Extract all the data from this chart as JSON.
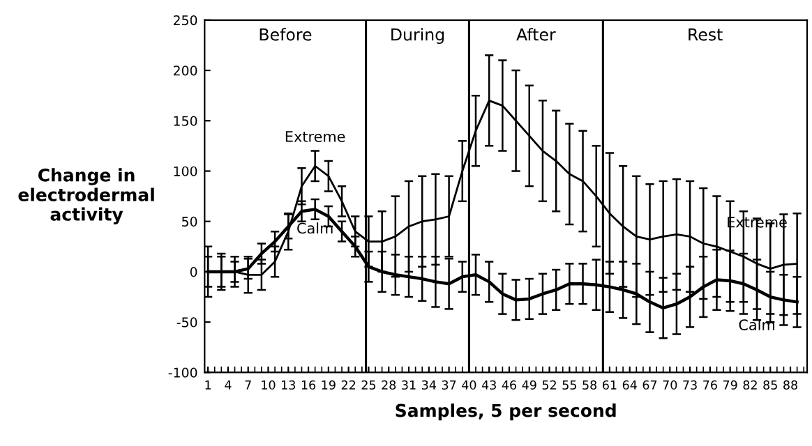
{
  "chart_data": {
    "type": "line",
    "xlabel": "Samples, 5 per second",
    "ylabel": "Change in\nelectrodermal\nactivity",
    "x": [
      1,
      3,
      5,
      7,
      9,
      11,
      13,
      15,
      17,
      19,
      21,
      23,
      25,
      27,
      29,
      31,
      33,
      35,
      37,
      39,
      41,
      43,
      45,
      47,
      49,
      51,
      53,
      55,
      57,
      59,
      61,
      63,
      65,
      67,
      69,
      71,
      73,
      75,
      77,
      79,
      81,
      83,
      85,
      87,
      89
    ],
    "series": [
      {
        "name": "Extreme",
        "color": "#000000",
        "values": [
          0,
          0,
          0,
          -3,
          -3,
          10,
          40,
          85,
          105,
          95,
          70,
          40,
          30,
          30,
          35,
          45,
          50,
          52,
          55,
          100,
          140,
          170,
          165,
          150,
          135,
          120,
          110,
          97,
          90,
          75,
          58,
          45,
          35,
          32,
          35,
          37,
          35,
          28,
          25,
          20,
          15,
          8,
          3,
          7,
          8
        ],
        "errors": [
          25,
          18,
          15,
          18,
          15,
          15,
          18,
          18,
          15,
          15,
          15,
          15,
          25,
          30,
          40,
          45,
          45,
          45,
          40,
          30,
          35,
          45,
          45,
          50,
          50,
          50,
          50,
          50,
          50,
          50,
          60,
          60,
          60,
          55,
          55,
          55,
          55,
          55,
          50,
          50,
          45,
          45,
          45,
          50,
          50
        ]
      },
      {
        "name": "Calm",
        "color": "#000000",
        "values": [
          0,
          0,
          0,
          3,
          18,
          30,
          45,
          60,
          62,
          55,
          40,
          25,
          5,
          0,
          -3,
          -5,
          -7,
          -10,
          -12,
          -5,
          -3,
          -10,
          -22,
          -28,
          -27,
          -22,
          -18,
          -12,
          -12,
          -13,
          -15,
          -18,
          -22,
          -30,
          -36,
          -32,
          -25,
          -15,
          -8,
          -9,
          -12,
          -18,
          -25,
          -28,
          -30
        ],
        "errors": [
          15,
          15,
          10,
          10,
          10,
          10,
          12,
          10,
          10,
          10,
          10,
          10,
          15,
          20,
          20,
          20,
          22,
          25,
          25,
          15,
          20,
          20,
          20,
          20,
          20,
          20,
          20,
          20,
          20,
          25,
          25,
          28,
          30,
          30,
          30,
          30,
          30,
          30,
          30,
          30,
          30,
          30,
          25,
          25,
          25
        ]
      }
    ],
    "marker": "none",
    "xlim": [
      0.5,
      90.5
    ],
    "xticks": [
      1,
      4,
      7,
      10,
      13,
      16,
      19,
      22,
      25,
      28,
      31,
      34,
      37,
      40,
      43,
      46,
      49,
      52,
      55,
      58,
      61,
      64,
      67,
      70,
      73,
      76,
      79,
      82,
      85,
      88
    ],
    "ylim": [
      -100,
      250
    ],
    "yticks": [
      -100,
      -50,
      0,
      50,
      100,
      150,
      200,
      250
    ],
    "ref_lines": [
      {
        "axis": "x",
        "value": 24.6,
        "color": "#000000"
      },
      {
        "axis": "x",
        "value": 40,
        "color": "#000000"
      },
      {
        "axis": "x",
        "value": 60,
        "color": "#000000"
      }
    ],
    "annotations": [
      "Before",
      "During",
      "After",
      "Rest"
    ],
    "grid": false,
    "legend": false
  }
}
